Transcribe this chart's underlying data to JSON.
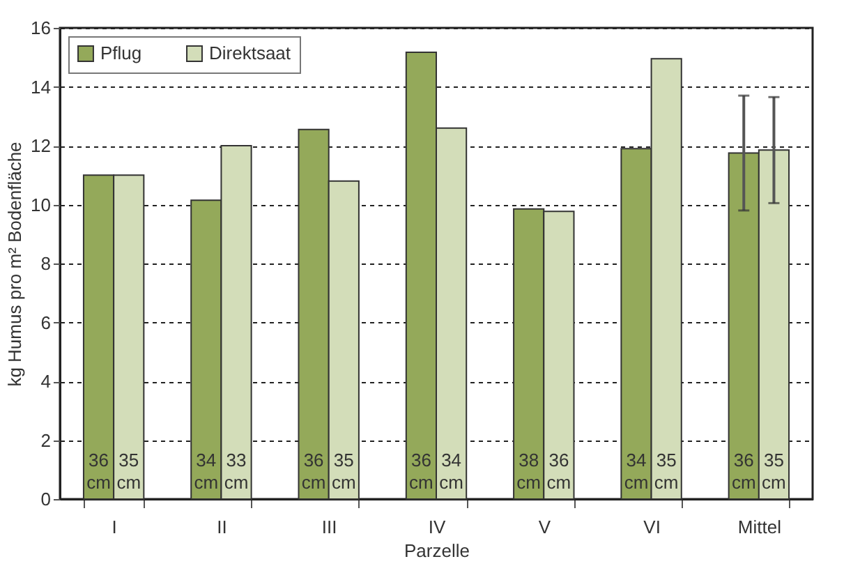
{
  "chart_data": {
    "type": "bar",
    "xlabel": "Parzelle",
    "ylabel": "kg Humus pro m² Bodenfläche",
    "categories": [
      "I",
      "II",
      "III",
      "IV",
      "V",
      "VI",
      "Mittel"
    ],
    "series": [
      {
        "name": "Pflug",
        "color": "#94a95a",
        "values": [
          11.0,
          10.15,
          12.55,
          15.17,
          9.85,
          11.9,
          11.75
        ],
        "errors": [
          null,
          null,
          null,
          null,
          null,
          null,
          1.95
        ]
      },
      {
        "name": "Direktsaat",
        "color": "#d3ddb9",
        "values": [
          11.0,
          12.0,
          10.8,
          12.6,
          9.77,
          14.95,
          11.85
        ],
        "errors": [
          null,
          null,
          null,
          null,
          null,
          null,
          1.8
        ]
      }
    ],
    "ylim": [
      0,
      16
    ],
    "yticks": [
      0,
      2,
      4,
      6,
      8,
      10,
      12,
      14,
      16
    ],
    "grid": "y",
    "legend": "top left",
    "annotations": [
      {
        "text": "36 cm",
        "x": "I",
        "y": 1.3
      },
      {
        "text": "35 cm",
        "x": "I",
        "y": 1.3
      },
      {
        "text": "34 cm",
        "x": "II",
        "y": 1.3
      },
      {
        "text": "33 cm",
        "x": "II",
        "y": 1.3
      },
      {
        "text": "36 cm",
        "x": "III",
        "y": 1.3
      },
      {
        "text": "35 cm",
        "x": "III",
        "y": 1.3
      },
      {
        "text": "36 cm",
        "x": "IV",
        "y": 1.3
      },
      {
        "text": "34 cm",
        "x": "IV",
        "y": 1.3
      },
      {
        "text": "38 cm",
        "x": "V",
        "y": 1.3
      },
      {
        "text": "36 cm",
        "x": "V",
        "y": 1.3
      },
      {
        "text": "34 cm",
        "x": "VI",
        "y": 1.3
      },
      {
        "text": "35 cm",
        "x": "VI",
        "y": 1.3
      },
      {
        "text": "36 cm",
        "x": "Mittel",
        "y": 1.3
      },
      {
        "text": "35 cm",
        "x": "Mittel",
        "y": 1.3
      }
    ]
  }
}
